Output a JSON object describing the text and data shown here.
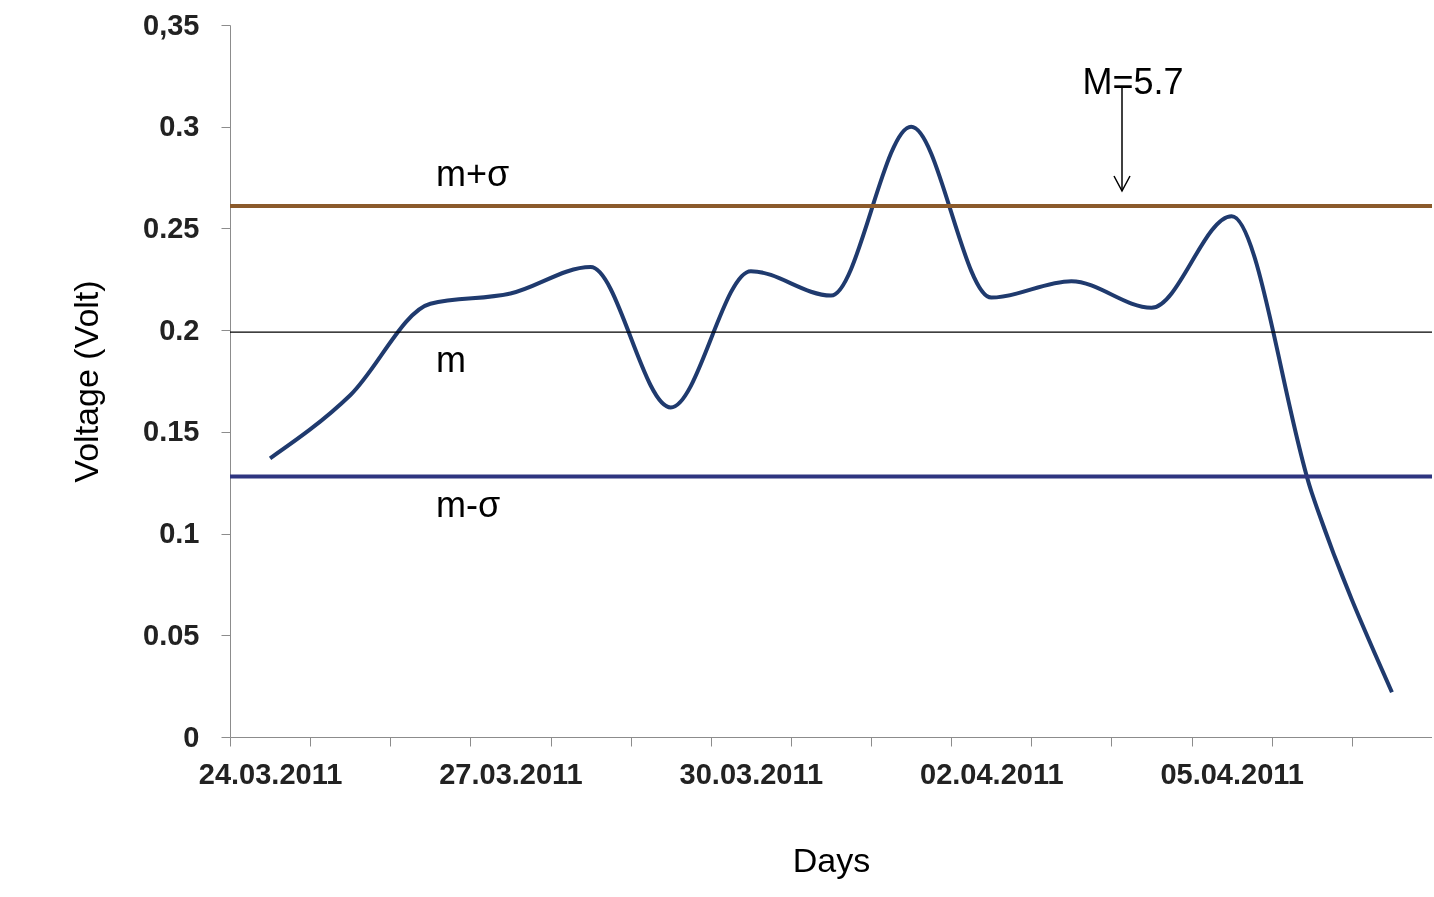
{
  "chart_data": {
    "type": "line",
    "xlabel": "Days",
    "ylabel": "Voltage (Volt)",
    "categories": [
      "24.03.2011",
      null,
      null,
      "27.03.2011",
      null,
      null,
      "30.03.2011",
      null,
      null,
      "02.04.2011",
      null,
      null,
      "05.04.2011",
      null,
      null
    ],
    "series": [
      {
        "color": "#1f3a6e",
        "values": [
          0.137,
          0.168,
          0.213,
          0.218,
          0.231,
          0.162,
          0.229,
          0.217,
          0.3,
          0.216,
          0.224,
          0.211,
          0.256,
          0.12,
          0.022
        ]
      }
    ],
    "ylim": [
      0,
      0.35
    ],
    "yticks": [
      0,
      0.05,
      0.1,
      0.15,
      0.2,
      0.25,
      0.3,
      {
        "value": 0.35,
        "label": "0,35"
      }
    ],
    "ref_lines": [
      {
        "axis": "y",
        "value": 0.261,
        "label": "m+σ",
        "color": "#8b5a2b"
      },
      {
        "axis": "y",
        "value": 0.199,
        "label": "m",
        "color": "#000000"
      },
      {
        "axis": "y",
        "value": 0.128,
        "label": "m-σ",
        "color": "#2e3580"
      }
    ],
    "annotations": [
      "M=5.7"
    ],
    "grid": false,
    "marker": "none",
    "line_style": "solid"
  }
}
